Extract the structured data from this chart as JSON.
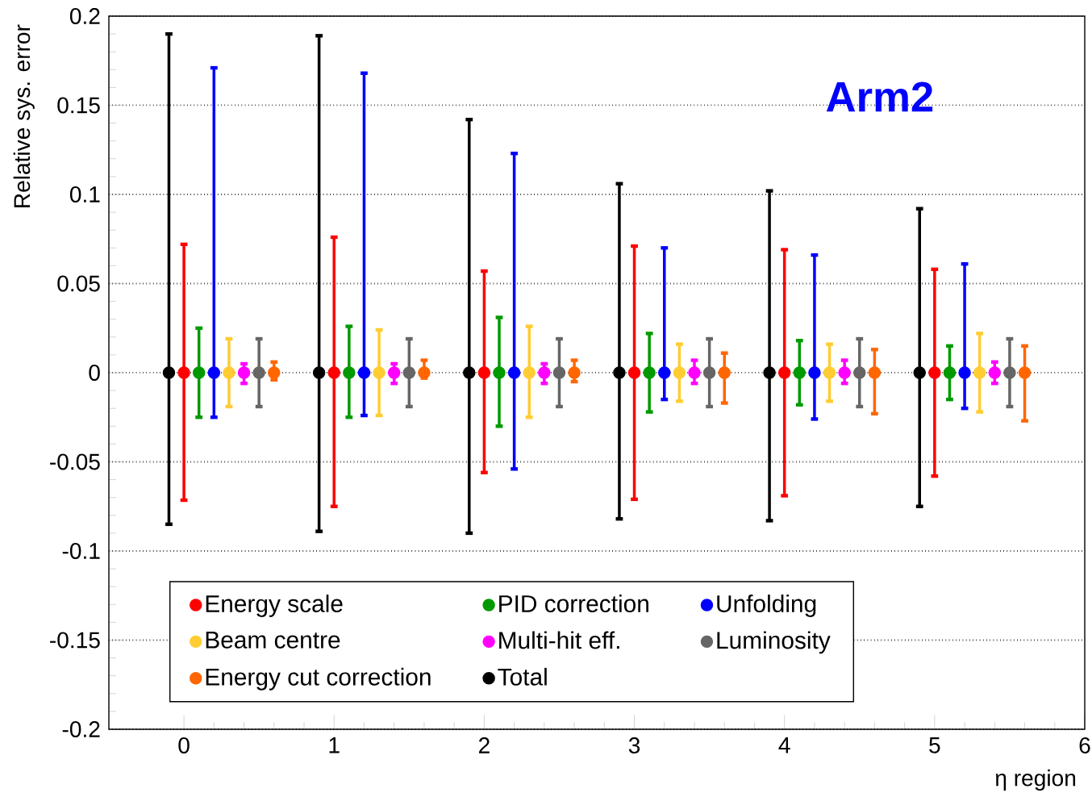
{
  "chart_data": {
    "type": "scatter",
    "xlabel": "η region",
    "ylabel": "Relative sys. error",
    "annotations": [
      "Arm2"
    ],
    "xlim": [
      -0.5,
      6
    ],
    "xticks": [
      0,
      1,
      2,
      3,
      4,
      5,
      6
    ],
    "ylim": [
      -0.2,
      0.2
    ],
    "yticks": [
      -0.2,
      -0.15,
      -0.1,
      -0.05,
      0,
      0.05,
      0.1,
      0.15,
      0.2
    ],
    "grid": "y",
    "legend": "bottom",
    "marker": "circle",
    "series": [
      {
        "name": "Energy scale",
        "color": "#ff0000",
        "x": [
          0,
          1,
          2,
          3,
          4,
          5
        ],
        "values": [
          0,
          0,
          0,
          0,
          0,
          0
        ],
        "errors": [
          [
            -0.0715,
            0.072
          ],
          [
            -0.075,
            0.076
          ],
          [
            -0.056,
            0.057
          ],
          [
            -0.071,
            0.071
          ],
          [
            -0.069,
            0.069
          ],
          [
            -0.058,
            0.058
          ]
        ]
      },
      {
        "name": "PID correction",
        "color": "#009900",
        "x": [
          0.1,
          1.1,
          2.1,
          3.1,
          4.1,
          5.1
        ],
        "values": [
          0,
          0,
          0,
          0,
          0,
          0
        ],
        "errors": [
          [
            -0.025,
            0.025
          ],
          [
            -0.025,
            0.026
          ],
          [
            -0.03,
            0.031
          ],
          [
            -0.022,
            0.022
          ],
          [
            -0.018,
            0.018
          ],
          [
            -0.015,
            0.015
          ]
        ]
      },
      {
        "name": "Unfolding",
        "color": "#0000ff",
        "x": [
          0.2,
          1.2,
          2.2,
          3.2,
          4.2,
          5.2
        ],
        "values": [
          0,
          0,
          0,
          0,
          0,
          0
        ],
        "errors": [
          [
            -0.025,
            0.171
          ],
          [
            -0.024,
            0.168
          ],
          [
            -0.054,
            0.123
          ],
          [
            -0.015,
            0.07
          ],
          [
            -0.026,
            0.066
          ],
          [
            -0.02,
            0.061
          ]
        ]
      },
      {
        "name": "Beam centre",
        "color": "#ffcc33",
        "x": [
          0.3,
          1.3,
          2.3,
          3.3,
          4.3,
          5.3
        ],
        "values": [
          0,
          0,
          0,
          0,
          0,
          0
        ],
        "errors": [
          [
            -0.019,
            0.019
          ],
          [
            -0.024,
            0.024
          ],
          [
            -0.025,
            0.026
          ],
          [
            -0.016,
            0.016
          ],
          [
            -0.016,
            0.016
          ],
          [
            -0.022,
            0.022
          ]
        ]
      },
      {
        "name": "Multi-hit eff.",
        "color": "#ff00ff",
        "x": [
          0.4,
          1.4,
          2.4,
          3.4,
          4.4,
          5.4
        ],
        "values": [
          0,
          0,
          0,
          0,
          0,
          0
        ],
        "errors": [
          [
            -0.006,
            0.005
          ],
          [
            -0.006,
            0.005
          ],
          [
            -0.006,
            0.005
          ],
          [
            -0.006,
            0.007
          ],
          [
            -0.006,
            0.007
          ],
          [
            -0.006,
            0.006
          ]
        ]
      },
      {
        "name": "Luminosity",
        "color": "#666666",
        "x": [
          0.5,
          1.5,
          2.5,
          3.5,
          4.5,
          5.5
        ],
        "values": [
          0,
          0,
          0,
          0,
          0,
          0
        ],
        "errors": [
          [
            -0.019,
            0.019
          ],
          [
            -0.019,
            0.019
          ],
          [
            -0.019,
            0.019
          ],
          [
            -0.019,
            0.019
          ],
          [
            -0.019,
            0.019
          ],
          [
            -0.019,
            0.019
          ]
        ]
      },
      {
        "name": "Energy cut correction",
        "color": "#ff6600",
        "x": [
          0.6,
          1.6,
          2.6,
          3.6,
          4.6,
          5.6
        ],
        "values": [
          0,
          0,
          0,
          0,
          0,
          0
        ],
        "errors": [
          [
            -0.004,
            0.006
          ],
          [
            -0.003,
            0.007
          ],
          [
            -0.005,
            0.007
          ],
          [
            -0.017,
            0.011
          ],
          [
            -0.023,
            0.013
          ],
          [
            -0.027,
            0.015
          ]
        ]
      },
      {
        "name": "Total",
        "color": "#000000",
        "x": [
          -0.1,
          0.9,
          1.9,
          2.9,
          3.9,
          4.9
        ],
        "values": [
          0,
          0,
          0,
          0,
          0,
          0
        ],
        "errors": [
          [
            -0.085,
            0.19
          ],
          [
            -0.089,
            0.189
          ],
          [
            -0.09,
            0.142
          ],
          [
            -0.082,
            0.106
          ],
          [
            -0.083,
            0.102
          ],
          [
            -0.075,
            0.092
          ]
        ]
      }
    ]
  }
}
